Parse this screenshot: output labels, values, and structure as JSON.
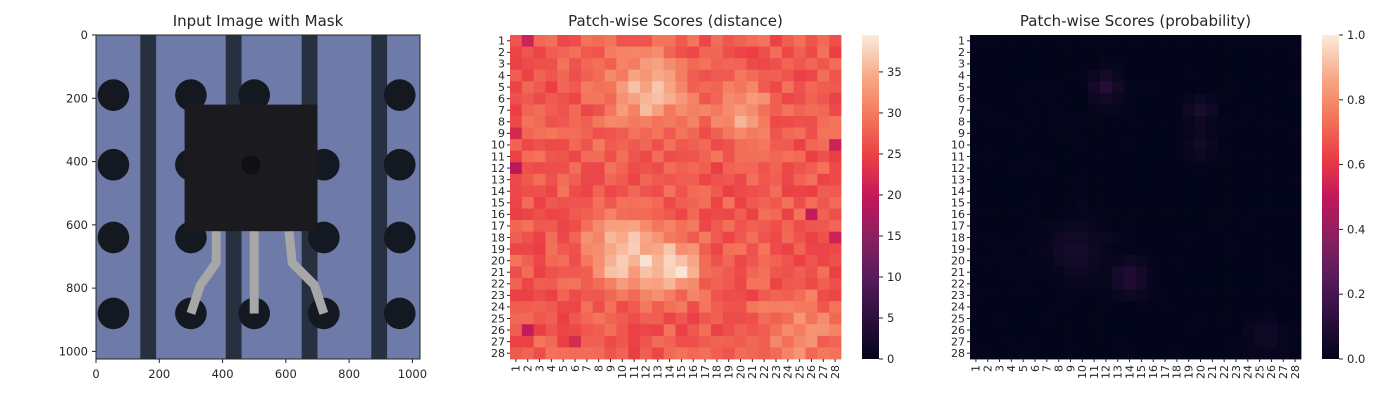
{
  "chart_data": [
    {
      "type": "image",
      "title": "Input Image with Mask",
      "xlim": [
        0,
        1024
      ],
      "ylim": [
        1024,
        0
      ],
      "xticks": [
        0,
        200,
        400,
        600,
        800,
        1000
      ],
      "yticks": [
        0,
        200,
        400,
        600,
        800,
        1000
      ],
      "image": {
        "background_color": "#6e7aa8",
        "strip_color": "#27303f",
        "strips_x": [
          [
            140,
            190
          ],
          [
            410,
            460
          ],
          [
            650,
            700
          ],
          [
            870,
            920
          ]
        ],
        "hole_color": "#141820",
        "hole_radius": 50,
        "holes": [
          [
            55,
            190
          ],
          [
            55,
            410
          ],
          [
            55,
            640
          ],
          [
            55,
            880
          ],
          [
            300,
            190
          ],
          [
            500,
            190
          ],
          [
            960,
            190
          ],
          [
            960,
            410
          ],
          [
            960,
            640
          ],
          [
            960,
            880
          ],
          [
            300,
            880
          ],
          [
            500,
            880
          ],
          [
            720,
            880
          ],
          [
            300,
            640
          ],
          [
            720,
            640
          ],
          [
            300,
            410
          ],
          [
            720,
            410
          ]
        ],
        "component_color": "#1b1b1f",
        "component_box": [
          280,
          220,
          700,
          620
        ],
        "leg_color": "#a7a7a7"
      }
    },
    {
      "type": "heatmap",
      "title": "Patch-wise Scores (distance)",
      "rows": 28,
      "cols": 28,
      "row_labels": [
        "1",
        "2",
        "3",
        "4",
        "5",
        "6",
        "7",
        "8",
        "9",
        "10",
        "11",
        "12",
        "13",
        "14",
        "15",
        "16",
        "17",
        "18",
        "19",
        "20",
        "21",
        "22",
        "23",
        "24",
        "25",
        "26",
        "27",
        "28"
      ],
      "col_labels": [
        "1",
        "2",
        "3",
        "4",
        "5",
        "6",
        "7",
        "8",
        "9",
        "10",
        "11",
        "12",
        "13",
        "14",
        "15",
        "16",
        "17",
        "18",
        "19",
        "20",
        "21",
        "22",
        "23",
        "24",
        "25",
        "26",
        "27",
        "28"
      ],
      "vmin": 0,
      "vmax": 39.5,
      "colorbar_ticks": [
        0,
        5,
        10,
        15,
        20,
        25,
        30,
        35
      ],
      "colormap": "rocket",
      "base_value": 27,
      "hot_spots": [
        {
          "row": 5.5,
          "col": 12,
          "sigma": 2.4,
          "amplitude": 8
        },
        {
          "row": 7,
          "col": 20,
          "sigma": 1.6,
          "amplitude": 7
        },
        {
          "row": 19.5,
          "col": 10,
          "sigma": 2.0,
          "amplitude": 11
        },
        {
          "row": 20.5,
          "col": 14.5,
          "sigma": 1.6,
          "amplitude": 11
        },
        {
          "row": 26,
          "col": 25,
          "sigma": 2.0,
          "amplitude": 5
        }
      ],
      "cold_spots": [
        {
          "row": 12,
          "col": 1,
          "value": 19
        },
        {
          "row": 26,
          "col": 2,
          "value": 20
        },
        {
          "row": 16,
          "col": 26,
          "value": 20
        },
        {
          "row": 1,
          "col": 2,
          "value": 21
        },
        {
          "row": 10,
          "col": 28,
          "value": 21
        },
        {
          "row": 18,
          "col": 28,
          "value": 21
        },
        {
          "row": 27,
          "col": 6,
          "value": 22
        },
        {
          "row": 9,
          "col": 1,
          "value": 22
        }
      ]
    },
    {
      "type": "heatmap",
      "title": "Patch-wise Scores (probability)",
      "rows": 28,
      "cols": 28,
      "row_labels": [
        "1",
        "2",
        "3",
        "4",
        "5",
        "6",
        "7",
        "8",
        "9",
        "10",
        "11",
        "12",
        "13",
        "14",
        "15",
        "16",
        "17",
        "18",
        "19",
        "20",
        "21",
        "22",
        "23",
        "24",
        "25",
        "26",
        "27",
        "28"
      ],
      "col_labels": [
        "1",
        "2",
        "3",
        "4",
        "5",
        "6",
        "7",
        "8",
        "9",
        "10",
        "11",
        "12",
        "13",
        "14",
        "15",
        "16",
        "17",
        "18",
        "19",
        "20",
        "21",
        "22",
        "23",
        "24",
        "25",
        "26",
        "27",
        "28"
      ],
      "vmin": 0,
      "vmax": 1.0,
      "colorbar_ticks": [
        "0.0",
        "0.2",
        "0.4",
        "0.6",
        "0.8",
        "1.0"
      ],
      "colormap": "rocket",
      "base_value": 0.0,
      "hot_spots": [
        {
          "row": 5,
          "col": 12,
          "sigma": 0.9,
          "amplitude": 0.1
        },
        {
          "row": 7,
          "col": 20,
          "sigma": 0.8,
          "amplitude": 0.07
        },
        {
          "row": 10,
          "col": 20,
          "sigma": 0.8,
          "amplitude": 0.05
        },
        {
          "row": 21.5,
          "col": 14,
          "sigma": 1.0,
          "amplitude": 0.1
        },
        {
          "row": 19,
          "col": 9.5,
          "sigma": 1.6,
          "amplitude": 0.06
        },
        {
          "row": 26.5,
          "col": 25.5,
          "sigma": 1.0,
          "amplitude": 0.05
        }
      ],
      "cold_spots": []
    }
  ]
}
